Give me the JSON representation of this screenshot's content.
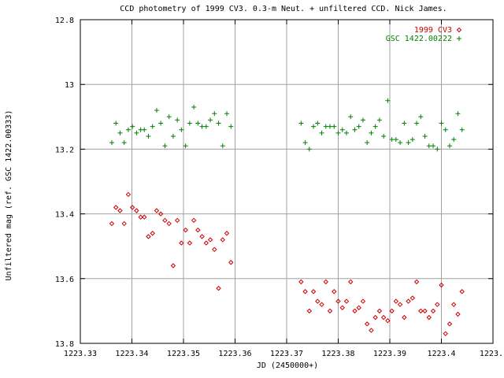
{
  "chart_data": {
    "type": "scatter",
    "title": "CCD photometry of 1999 CV3.  0.3-m Neut. + unfiltered CCD.  Nick James.",
    "xlabel": "JD (2450000+)",
    "ylabel": "Unfiltered mag (ref. GSC 1422.00333)",
    "xlim": [
      1223.33,
      1223.41
    ],
    "ylim": [
      13.8,
      12.8
    ],
    "y_inverted": true,
    "grid": true,
    "legend_position": "top-right",
    "x_ticks": [
      "1223.33",
      "1223.34",
      "1223.35",
      "1223.36",
      "1223.37",
      "1223.38",
      "1223.39",
      "1223.4",
      "1223."
    ],
    "y_ticks": [
      "12.8",
      "13",
      "13.2",
      "13.4",
      "13.6",
      "13.8"
    ],
    "series": [
      {
        "name": "1999 CV3",
        "color": "#cc0000",
        "marker": "diamond",
        "points": [
          [
            1223.3361,
            13.43
          ],
          [
            1223.3369,
            13.38
          ],
          [
            1223.3377,
            13.39
          ],
          [
            1223.3385,
            13.43
          ],
          [
            1223.3393,
            13.34
          ],
          [
            1223.3401,
            13.38
          ],
          [
            1223.3409,
            13.39
          ],
          [
            1223.3417,
            13.41
          ],
          [
            1223.3424,
            13.41
          ],
          [
            1223.3432,
            13.47
          ],
          [
            1223.344,
            13.46
          ],
          [
            1223.3448,
            13.39
          ],
          [
            1223.3456,
            13.4
          ],
          [
            1223.3464,
            13.42
          ],
          [
            1223.3472,
            13.43
          ],
          [
            1223.348,
            13.56
          ],
          [
            1223.3488,
            13.42
          ],
          [
            1223.3496,
            13.49
          ],
          [
            1223.3504,
            13.45
          ],
          [
            1223.3512,
            13.49
          ],
          [
            1223.352,
            13.42
          ],
          [
            1223.3528,
            13.45
          ],
          [
            1223.3536,
            13.47
          ],
          [
            1223.3544,
            13.49
          ],
          [
            1223.3552,
            13.48
          ],
          [
            1223.356,
            13.51
          ],
          [
            1223.3568,
            13.63
          ],
          [
            1223.3576,
            13.48
          ],
          [
            1223.3584,
            13.46
          ],
          [
            1223.3592,
            13.55
          ],
          [
            1223.3728,
            13.61
          ],
          [
            1223.3736,
            13.64
          ],
          [
            1223.3744,
            13.7
          ],
          [
            1223.3752,
            13.64
          ],
          [
            1223.376,
            13.67
          ],
          [
            1223.3768,
            13.68
          ],
          [
            1223.3776,
            13.61
          ],
          [
            1223.3784,
            13.7
          ],
          [
            1223.3792,
            13.64
          ],
          [
            1223.38,
            13.67
          ],
          [
            1223.3808,
            13.69
          ],
          [
            1223.3816,
            13.67
          ],
          [
            1223.3824,
            13.61
          ],
          [
            1223.3832,
            13.7
          ],
          [
            1223.384,
            13.69
          ],
          [
            1223.3848,
            13.67
          ],
          [
            1223.3856,
            13.74
          ],
          [
            1223.3864,
            13.76
          ],
          [
            1223.3872,
            13.72
          ],
          [
            1223.388,
            13.7
          ],
          [
            1223.3888,
            13.72
          ],
          [
            1223.3896,
            13.73
          ],
          [
            1223.3904,
            13.7
          ],
          [
            1223.3912,
            13.67
          ],
          [
            1223.392,
            13.68
          ],
          [
            1223.3928,
            13.72
          ],
          [
            1223.3936,
            13.67
          ],
          [
            1223.3944,
            13.66
          ],
          [
            1223.3952,
            13.61
          ],
          [
            1223.396,
            13.7
          ],
          [
            1223.3968,
            13.7
          ],
          [
            1223.3976,
            13.72
          ],
          [
            1223.3984,
            13.7
          ],
          [
            1223.3992,
            13.68
          ],
          [
            1223.4,
            13.62
          ],
          [
            1223.4008,
            13.77
          ],
          [
            1223.4016,
            13.74
          ],
          [
            1223.4024,
            13.68
          ],
          [
            1223.4032,
            13.71
          ],
          [
            1223.404,
            13.64
          ]
        ]
      },
      {
        "name": "GSC 1422.00222",
        "color": "#008000",
        "marker": "plus",
        "points": [
          [
            1223.3361,
            13.18
          ],
          [
            1223.3369,
            13.12
          ],
          [
            1223.3377,
            13.15
          ],
          [
            1223.3385,
            13.18
          ],
          [
            1223.3393,
            13.14
          ],
          [
            1223.3401,
            13.13
          ],
          [
            1223.3409,
            13.15
          ],
          [
            1223.3417,
            13.14
          ],
          [
            1223.3424,
            13.14
          ],
          [
            1223.3432,
            13.16
          ],
          [
            1223.344,
            13.13
          ],
          [
            1223.3448,
            13.08
          ],
          [
            1223.3456,
            13.12
          ],
          [
            1223.3464,
            13.19
          ],
          [
            1223.3472,
            13.1
          ],
          [
            1223.348,
            13.16
          ],
          [
            1223.3488,
            13.11
          ],
          [
            1223.3496,
            13.14
          ],
          [
            1223.3504,
            13.19
          ],
          [
            1223.3512,
            13.12
          ],
          [
            1223.352,
            13.07
          ],
          [
            1223.3528,
            13.12
          ],
          [
            1223.3536,
            13.13
          ],
          [
            1223.3544,
            13.13
          ],
          [
            1223.3552,
            13.11
          ],
          [
            1223.356,
            13.09
          ],
          [
            1223.3568,
            13.12
          ],
          [
            1223.3576,
            13.19
          ],
          [
            1223.3584,
            13.09
          ],
          [
            1223.3592,
            13.13
          ],
          [
            1223.3728,
            13.12
          ],
          [
            1223.3736,
            13.18
          ],
          [
            1223.3744,
            13.2
          ],
          [
            1223.3752,
            13.13
          ],
          [
            1223.376,
            13.12
          ],
          [
            1223.3768,
            13.15
          ],
          [
            1223.3776,
            13.13
          ],
          [
            1223.3784,
            13.13
          ],
          [
            1223.3792,
            13.13
          ],
          [
            1223.38,
            13.15
          ],
          [
            1223.3808,
            13.14
          ],
          [
            1223.3816,
            13.15
          ],
          [
            1223.3824,
            13.1
          ],
          [
            1223.3832,
            13.14
          ],
          [
            1223.384,
            13.13
          ],
          [
            1223.3848,
            13.11
          ],
          [
            1223.3856,
            13.18
          ],
          [
            1223.3864,
            13.15
          ],
          [
            1223.3872,
            13.13
          ],
          [
            1223.388,
            13.11
          ],
          [
            1223.3888,
            13.16
          ],
          [
            1223.3896,
            13.05
          ],
          [
            1223.3904,
            13.17
          ],
          [
            1223.3912,
            13.17
          ],
          [
            1223.392,
            13.18
          ],
          [
            1223.3928,
            13.12
          ],
          [
            1223.3936,
            13.18
          ],
          [
            1223.3944,
            13.17
          ],
          [
            1223.3952,
            13.12
          ],
          [
            1223.396,
            13.1
          ],
          [
            1223.3968,
            13.16
          ],
          [
            1223.3976,
            13.19
          ],
          [
            1223.3984,
            13.19
          ],
          [
            1223.3992,
            13.2
          ],
          [
            1223.4,
            13.12
          ],
          [
            1223.4008,
            13.14
          ],
          [
            1223.4016,
            13.19
          ],
          [
            1223.4024,
            13.17
          ],
          [
            1223.4032,
            13.09
          ],
          [
            1223.404,
            13.14
          ]
        ]
      }
    ]
  }
}
